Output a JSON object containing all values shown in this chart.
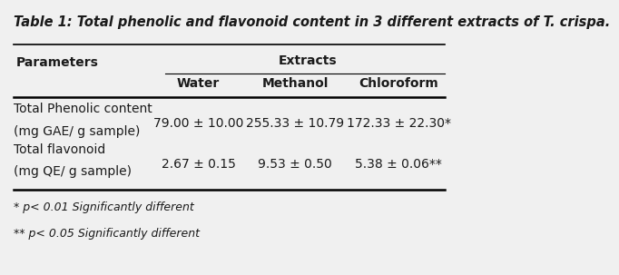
{
  "title": "Table 1: Total phenolic and flavonoid content in 3 different extracts of T. crispa.",
  "col_header_top": "Extracts",
  "col_headers": [
    "Parameters",
    "Water",
    "Methanol",
    "Chloroform"
  ],
  "row1_label_line1": "Total Phenolic content",
  "row1_label_line2": "(mg GAE/ g sample)",
  "row1_values": [
    "79.00 ± 10.00",
    "255.33 ± 10.79",
    "172.33 ± 22.30*"
  ],
  "row2_label_line1": "Total flavonoid",
  "row2_label_line2": "(mg QE/ g sample)",
  "row2_values": [
    "2.67 ± 0.15",
    "9.53 ± 0.50",
    "5.38 ± 0.06**"
  ],
  "footnote1": "* p< 0.01 Significantly different",
  "footnote2": "** p< 0.05 Significantly different",
  "bg_color": "#f0f0f0",
  "text_color": "#1a1a1a",
  "title_fontsize": 10.5,
  "header_fontsize": 10,
  "body_fontsize": 10,
  "footnote_fontsize": 9
}
